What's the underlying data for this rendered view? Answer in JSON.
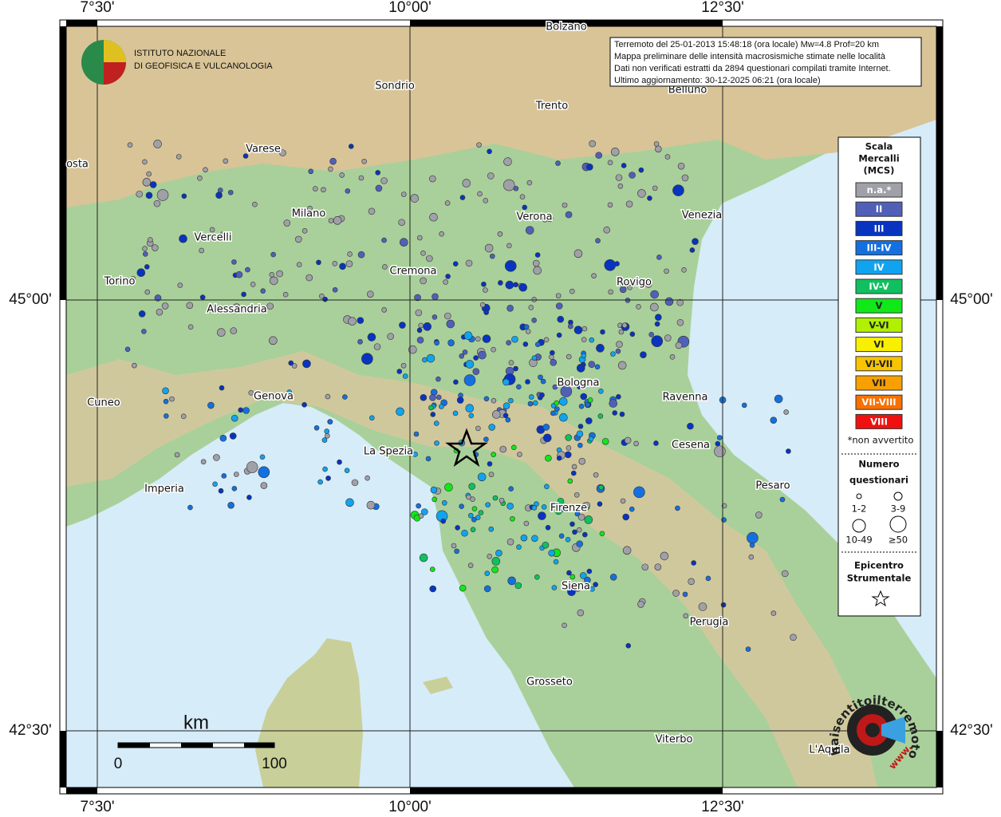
{
  "map": {
    "lon_labels": [
      "7°30'",
      "10°00'",
      "12°30'"
    ],
    "lat_labels": [
      "45°00'",
      "42°30'"
    ],
    "info": [
      "Terremoto del 25-01-2013 15:48:18 (ora locale) Mw=4.8 Prof=20 km",
      "Mappa preliminare delle intensità macrosismiche stimate nelle località",
      "Dati non verificati estratti da 2894 questionari compilati tramite Internet.",
      "Ultimo aggiornamento: 30-12-2025 06:21 (ora locale)"
    ],
    "cities": [
      "Bolzano",
      "Sondrio",
      "Trento",
      "Belluno",
      "Varese",
      "osta",
      "Milano",
      "Verona",
      "Venezia",
      "Vercelli",
      "Cremona",
      "Torino",
      "Rovigo",
      "Alessandria",
      "Bologna",
      "Cuneo",
      "Genova",
      "Ravenna",
      "La Spezia",
      "Cesena",
      "Pesaro",
      "Imperia",
      "Firenze",
      "Siena",
      "Perugia",
      "Grosseto",
      "Viterbo",
      "L'Aquila"
    ],
    "scale": {
      "unit": "km",
      "ticks": [
        0,
        100
      ]
    }
  },
  "logo": {
    "lines": [
      "ISTITUTO NAZIONALE",
      "DI GEOFISICA E VULCANOLOGIA"
    ]
  },
  "legend": {
    "title": [
      "Scala",
      "Mercalli",
      "(MCS)"
    ],
    "levels": [
      {
        "label": "n.a.*",
        "color": "#a0a0a8"
      },
      {
        "label": "II",
        "color": "#5060b8"
      },
      {
        "label": "III",
        "color": "#0834c0"
      },
      {
        "label": "III-IV",
        "color": "#1470e0"
      },
      {
        "label": "IV",
        "color": "#10a4f0"
      },
      {
        "label": "IV-V",
        "color": "#10c060"
      },
      {
        "label": "V",
        "color": "#10e818"
      },
      {
        "label": "V-VI",
        "color": "#b0f000"
      },
      {
        "label": "VI",
        "color": "#f8f000"
      },
      {
        "label": "VI-VII",
        "color": "#f8c400"
      },
      {
        "label": "VII",
        "color": "#f8a000"
      },
      {
        "label": "VII-VIII",
        "color": "#f87000"
      },
      {
        "label": "VIII",
        "color": "#f01010"
      }
    ],
    "note": "*non avvertito",
    "count_title": [
      "Numero",
      "questionari"
    ],
    "counts": [
      "1-2",
      "3-9",
      "10-49",
      "≥50"
    ],
    "epicenter": [
      "Epicentro",
      "Strumentale"
    ]
  },
  "site_logo": {
    "text": "haisentitoilterremoto.it",
    "www": "www."
  }
}
